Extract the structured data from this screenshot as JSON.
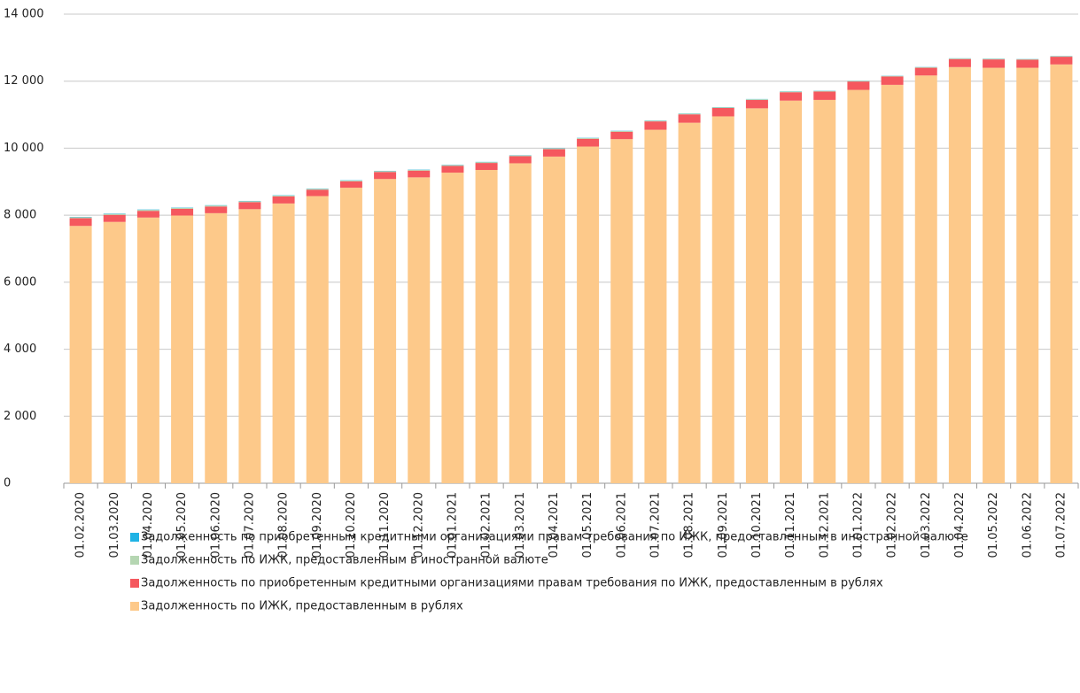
{
  "chart_data": {
    "type": "stacked_bar",
    "categories": [
      "01.02.2020",
      "01.03.2020",
      "01.04.2020",
      "01.05.2020",
      "01.06.2020",
      "01.07.2020",
      "01.08.2020",
      "01.09.2020",
      "01.10.2020",
      "01.11.2020",
      "01.12.2020",
      "01.01.2021",
      "01.02.2021",
      "01.03.2021",
      "01.04.2021",
      "01.05.2021",
      "01.06.2021",
      "01.07.2021",
      "01.08.2021",
      "01.09.2021",
      "01.10.2021",
      "01.11.2021",
      "01.12.2021",
      "01.01.2022",
      "01.02.2022",
      "01.03.2022",
      "01.04.2022",
      "01.05.2022",
      "01.06.2022",
      "01.07.2022"
    ],
    "series": [
      {
        "name": "Задолженность по ИЖК, предоставленным в рублях",
        "color": "#fdc98a",
        "values": [
          7680,
          7800,
          7930,
          7990,
          8060,
          8180,
          8350,
          8570,
          8820,
          9080,
          9130,
          9270,
          9350,
          9550,
          9750,
          10050,
          10270,
          10550,
          10760,
          10950,
          11190,
          11420,
          11440,
          11740,
          11890,
          12170,
          12420,
          12400,
          12400,
          12500
        ]
      },
      {
        "name": "Задолженность по приобретенным кредитными организациями правам требования по ИЖК, предоставленным в рублях",
        "color": "#f5585e",
        "values": [
          230,
          210,
          200,
          200,
          200,
          210,
          210,
          190,
          190,
          210,
          200,
          200,
          210,
          210,
          220,
          230,
          220,
          250,
          250,
          250,
          250,
          250,
          250,
          250,
          250,
          230,
          240,
          250,
          240,
          230
        ]
      },
      {
        "name": "Задолженность по ИЖК, предоставленным в иностранной валюте",
        "color": "#b5d6b2",
        "values": [
          30,
          30,
          30,
          30,
          30,
          28,
          28,
          27,
          27,
          26,
          26,
          25,
          25,
          24,
          24,
          23,
          23,
          22,
          22,
          21,
          21,
          20,
          20,
          20,
          19,
          19,
          18,
          18,
          18,
          17
        ]
      },
      {
        "name": "Задолженность по приобретенным кредитными организациями правам требования по ИЖК, предоставленным в иностранной валюте",
        "color": "#1fb3e5",
        "values": [
          10,
          10,
          10,
          9,
          9,
          9,
          9,
          8,
          8,
          8,
          8,
          8,
          7,
          7,
          7,
          7,
          7,
          6,
          6,
          6,
          6,
          6,
          6,
          5,
          5,
          5,
          5,
          5,
          5,
          5
        ]
      }
    ],
    "ylim": [
      0,
      14000
    ],
    "yticks": [
      0,
      {
        "value": 2000,
        "label": "2 000"
      },
      {
        "value": 4000,
        "label": "4 000"
      },
      {
        "value": 6000,
        "label": "6 000"
      },
      {
        "value": 8000,
        "label": "8 000"
      },
      {
        "value": 10000,
        "label": "10 000"
      },
      {
        "value": 12000,
        "label": "12 000"
      },
      {
        "value": 14000,
        "label": "14 000"
      }
    ],
    "grid": true
  }
}
